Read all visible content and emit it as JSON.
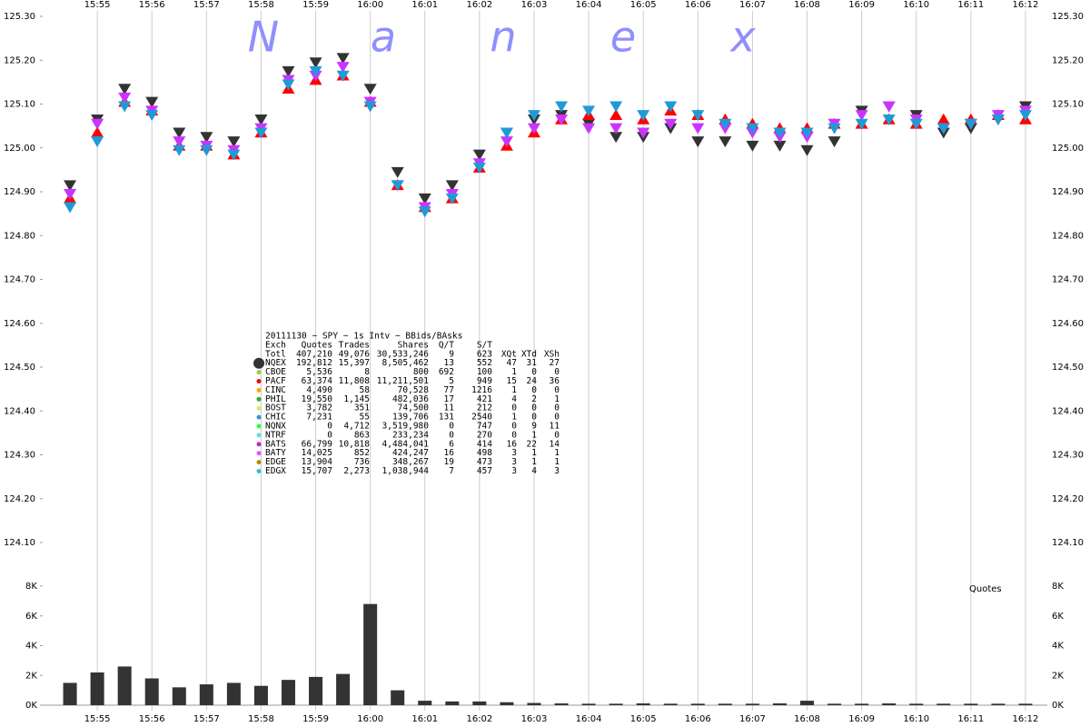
{
  "chart_data": [
    {
      "type": "scatter",
      "watermark": "Nanex",
      "xlim": [
        954,
        972.4
      ],
      "xticks": [
        {
          "value": 955,
          "label": "15:55"
        },
        {
          "value": 956,
          "label": "15:56"
        },
        {
          "value": 957,
          "label": "15:57"
        },
        {
          "value": 958,
          "label": "15:58"
        },
        {
          "value": 959,
          "label": "15:59"
        },
        {
          "value": 960,
          "label": "16:00"
        },
        {
          "value": 961,
          "label": "16:01"
        },
        {
          "value": 962,
          "label": "16:02"
        },
        {
          "value": 963,
          "label": "16:03"
        },
        {
          "value": 964,
          "label": "16:04"
        },
        {
          "value": 965,
          "label": "16:05"
        },
        {
          "value": 966,
          "label": "16:06"
        },
        {
          "value": 967,
          "label": "16:07"
        },
        {
          "value": 968,
          "label": "16:08"
        },
        {
          "value": 969,
          "label": "16:09"
        },
        {
          "value": 970,
          "label": "16:10"
        },
        {
          "value": 971,
          "label": "16:11"
        },
        {
          "value": 972,
          "label": "16:12"
        }
      ],
      "ylim": [
        124.1,
        125.3
      ],
      "yticks": [
        {
          "value": 124.1,
          "label": "124.10"
        },
        {
          "value": 124.2,
          "label": "124.20"
        },
        {
          "value": 124.3,
          "label": "124.30"
        },
        {
          "value": 124.4,
          "label": "124.40"
        },
        {
          "value": 124.5,
          "label": "124.50"
        },
        {
          "value": 124.6,
          "label": "124.60"
        },
        {
          "value": 124.7,
          "label": "124.70"
        },
        {
          "value": 124.8,
          "label": "124.80"
        },
        {
          "value": 124.9,
          "label": "124.90"
        },
        {
          "value": 125.0,
          "label": "125.00"
        },
        {
          "value": 125.1,
          "label": "125.10"
        },
        {
          "value": 125.2,
          "label": "125.20"
        },
        {
          "value": 125.3,
          "label": "125.30"
        }
      ],
      "grid": true,
      "x": [
        954.5,
        955,
        955.5,
        956,
        956.5,
        957,
        957.5,
        958,
        958.5,
        959,
        959.5,
        960,
        960.5,
        961,
        961.5,
        962,
        962.5,
        963,
        963.5,
        964,
        964.5,
        965,
        965.5,
        966,
        966.5,
        967,
        967.5,
        968,
        968.5,
        969,
        969.5,
        970,
        970.5,
        971,
        971.5,
        972
      ],
      "series": [
        {
          "color": "#333333",
          "marker": "down",
          "values": [
            124.92,
            125.07,
            125.14,
            125.11,
            125.04,
            125.03,
            125.02,
            125.07,
            125.18,
            125.2,
            125.21,
            125.14,
            124.95,
            124.89,
            124.92,
            124.99,
            125.04,
            125.07,
            125.08,
            125.06,
            125.03,
            125.03,
            125.05,
            125.02,
            125.02,
            125.01,
            125.01,
            125.0,
            125.02,
            125.09,
            125.1,
            125.08,
            125.04,
            125.05,
            125.07,
            125.1
          ]
        },
        {
          "color": "#ff0000",
          "marker": "up",
          "values": [
            124.88,
            125.03,
            125.1,
            125.08,
            125.0,
            125.0,
            124.98,
            125.03,
            125.13,
            125.15,
            125.16,
            125.1,
            124.91,
            124.86,
            124.88,
            124.95,
            125.0,
            125.03,
            125.06,
            125.07,
            125.07,
            125.06,
            125.08,
            125.07,
            125.06,
            125.05,
            125.04,
            125.04,
            125.05,
            125.05,
            125.06,
            125.05,
            125.06,
            125.06,
            125.07,
            125.06
          ]
        },
        {
          "color": "#cc33ff",
          "marker": "down",
          "values": [
            124.9,
            125.06,
            125.12,
            125.09,
            125.02,
            125.01,
            125.0,
            125.05,
            125.16,
            125.17,
            125.19,
            125.11,
            124.92,
            124.87,
            124.9,
            124.97,
            125.02,
            125.05,
            125.07,
            125.05,
            125.05,
            125.04,
            125.06,
            125.05,
            125.05,
            125.04,
            125.03,
            125.03,
            125.06,
            125.08,
            125.1,
            125.07,
            125.05,
            125.06,
            125.08,
            125.09
          ]
        },
        {
          "color": "#1e9bd7",
          "marker": "down",
          "values": [
            124.87,
            125.02,
            125.1,
            125.08,
            125.0,
            125.0,
            124.99,
            125.04,
            125.15,
            125.18,
            125.17,
            125.1,
            124.92,
            124.86,
            124.89,
            124.96,
            125.04,
            125.08,
            125.1,
            125.09,
            125.1,
            125.08,
            125.1,
            125.08,
            125.06,
            125.05,
            125.04,
            125.04,
            125.05,
            125.06,
            125.07,
            125.06,
            125.05,
            125.06,
            125.07,
            125.08
          ]
        }
      ],
      "stats_table": {
        "title": "20111130 ~ SPY ~ 1s Intv ~ BBids/BAsks",
        "columns": [
          "Exch",
          "Quotes",
          "Trades",
          "Shares",
          "Q/T",
          "S/T",
          "XQt",
          "XTd",
          "XSh"
        ],
        "rows": [
          {
            "cells": [
              "Totl",
              "407,210",
              "49,076",
              "30,533,246",
              "9",
              "623"
            ]
          },
          {
            "color": "#333333",
            "cells": [
              "NQEX",
              "192,812",
              "15,397",
              "8,505,462",
              "13",
              "552",
              "47",
              "31",
              "27"
            ]
          },
          {
            "color": "#99cc33",
            "cells": [
              "CBOE",
              "5,536",
              "8",
              "800",
              "692",
              "100",
              "1",
              "0",
              "0"
            ]
          },
          {
            "color": "#ff0000",
            "cells": [
              "PACF",
              "63,374",
              "11,808",
              "11,211,501",
              "5",
              "949",
              "15",
              "24",
              "36"
            ]
          },
          {
            "color": "#ffaa00",
            "cells": [
              "CINC",
              "4,490",
              "58",
              "70,528",
              "77",
              "1216",
              "1",
              "0",
              "0"
            ]
          },
          {
            "color": "#33aa33",
            "cells": [
              "PHIL",
              "19,550",
              "1,145",
              "482,036",
              "17",
              "421",
              "4",
              "2",
              "1"
            ]
          },
          {
            "color": "#ccee66",
            "cells": [
              "BOST",
              "3,782",
              "351",
              "74,500",
              "11",
              "212",
              "0",
              "0",
              "0"
            ]
          },
          {
            "color": "#3399cc",
            "cells": [
              "CHIC",
              "7,231",
              "55",
              "139,706",
              "131",
              "2540",
              "1",
              "0",
              "0"
            ]
          },
          {
            "color": "#33ff33",
            "cells": [
              "NQNX",
              "0",
              "4,712",
              "3,519,980",
              "0",
              "747",
              "0",
              "9",
              "11"
            ]
          },
          {
            "color": "#66dddd",
            "cells": [
              "NTRF",
              "0",
              "863",
              "233,234",
              "0",
              "270",
              "0",
              "1",
              "0"
            ]
          },
          {
            "color": "#aa33cc",
            "cells": [
              "BATS",
              "66,799",
              "10,818",
              "4,484,041",
              "6",
              "414",
              "16",
              "22",
              "14"
            ]
          },
          {
            "color": "#dd55ff",
            "cells": [
              "BATY",
              "14,025",
              "852",
              "424,247",
              "16",
              "498",
              "3",
              "1",
              "1"
            ]
          },
          {
            "color": "#bb8800",
            "cells": [
              "EDGE",
              "13,904",
              "736",
              "348,267",
              "19",
              "473",
              "3",
              "1",
              "1"
            ]
          },
          {
            "color": "#33bbdd",
            "cells": [
              "EDGX",
              "15,707",
              "2,273",
              "1,038,944",
              "7",
              "457",
              "3",
              "4",
              "3"
            ]
          }
        ]
      }
    },
    {
      "type": "bar",
      "annotation": "Quotes",
      "color": "#333333",
      "ylim": [
        0,
        8000
      ],
      "yticks": [
        {
          "value": 0,
          "label": "0K"
        },
        {
          "value": 2000,
          "label": "2K"
        },
        {
          "value": 4000,
          "label": "4K"
        },
        {
          "value": 6000,
          "label": "6K"
        },
        {
          "value": 8000,
          "label": "8K"
        }
      ],
      "values": [
        1500,
        2200,
        2600,
        1800,
        1200,
        1400,
        1500,
        1300,
        1700,
        1900,
        2100,
        6800,
        1000,
        300,
        250,
        250,
        200,
        150,
        120,
        100,
        100,
        120,
        100,
        100,
        100,
        100,
        120,
        300,
        100,
        100,
        120,
        100,
        100,
        100,
        100,
        100
      ]
    }
  ]
}
